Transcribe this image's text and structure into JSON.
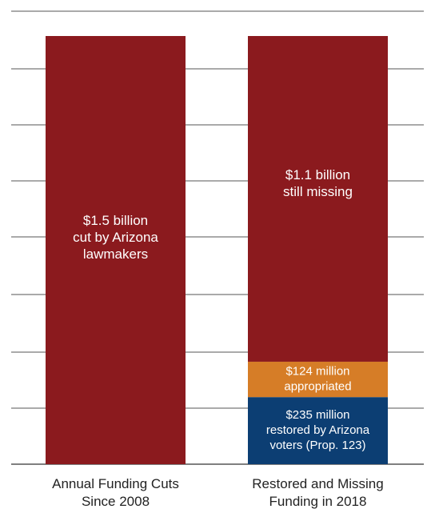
{
  "chart_data": {
    "type": "bar",
    "stacked": true,
    "title": "",
    "xlabel": "",
    "ylabel": "",
    "ylim": [
      0,
      1.5
    ],
    "value_unit": "billion dollars",
    "grid": true,
    "legend": "none",
    "categories": [
      {
        "label_lines": [
          "Annual Funding Cuts",
          "Since 2008"
        ]
      },
      {
        "label_lines": [
          "Restored and Missing",
          "Funding in 2018"
        ]
      }
    ],
    "bars": [
      {
        "category_index": 0,
        "segments": [
          {
            "value": 1.5,
            "color": "#8b1a1e",
            "label_lines": [
              "$1.5 billion",
              "cut by Arizona",
              "lawmakers"
            ]
          }
        ]
      },
      {
        "category_index": 1,
        "segments": [
          {
            "value": 0.235,
            "color": "#0c3e73",
            "label_lines": [
              "$235 million",
              "restored by Arizona",
              "voters (Prop. 123)"
            ]
          },
          {
            "value": 0.124,
            "color": "#d67d27",
            "label_lines": [
              "$124 million",
              "appropriated"
            ]
          },
          {
            "value": 1.141,
            "color": "#8b1a1e",
            "label_lines": [
              "$1.1 billion",
              "still missing"
            ]
          }
        ]
      }
    ]
  }
}
